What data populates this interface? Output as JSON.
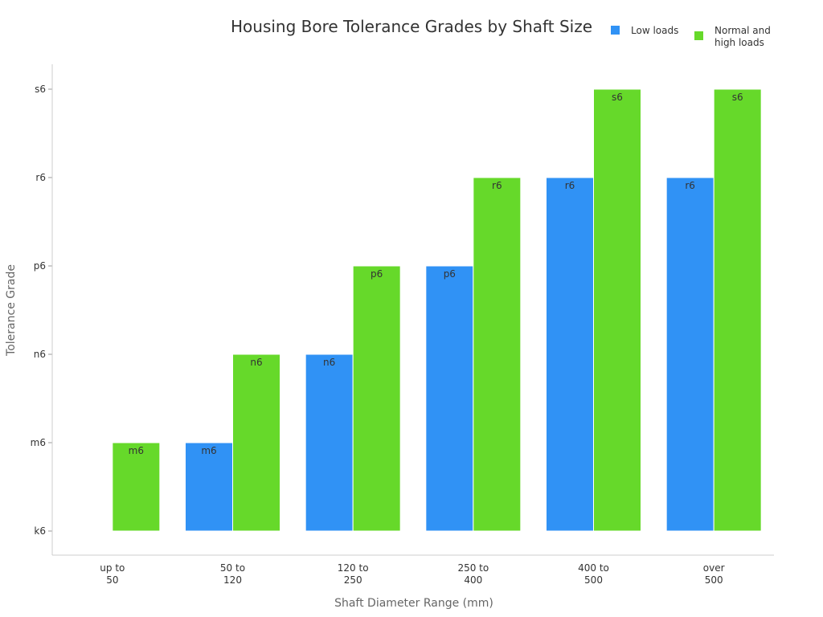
{
  "chart_data": {
    "type": "bar",
    "title": "Housing Bore Tolerance Grades by Shaft Size",
    "xlabel": "Shaft Diameter Range (mm)",
    "ylabel": "Tolerance Grade",
    "y_tick_labels": [
      "k6",
      "m6",
      "n6",
      "p6",
      "r6",
      "s6"
    ],
    "categories": [
      [
        "up to",
        "50"
      ],
      [
        "50 to",
        "120"
      ],
      [
        "120 to",
        "250"
      ],
      [
        "250 to",
        "400"
      ],
      [
        "400 to",
        "500"
      ],
      [
        "over",
        "500"
      ]
    ],
    "series": [
      {
        "name": "Low loads",
        "color": "#3092f5",
        "values": [
          null,
          "m6",
          "n6",
          "p6",
          "r6",
          "r6"
        ]
      },
      {
        "name": [
          "Normal and",
          "high loads"
        ],
        "color": "#66d92a",
        "values": [
          "m6",
          "n6",
          "p6",
          "r6",
          "s6",
          "s6"
        ]
      }
    ],
    "legend_position": "top-right",
    "grid": false
  }
}
